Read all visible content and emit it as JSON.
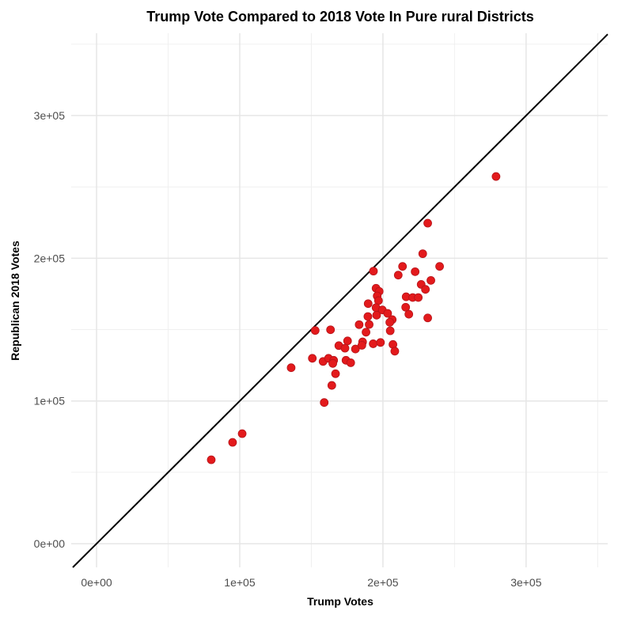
{
  "chart_data": {
    "type": "scatter",
    "title": "Trump Vote Compared to 2018 Vote In Pure rural Districts",
    "xlabel": "Trump Votes",
    "ylabel": "Republican 2018 Votes",
    "xlim": [
      -17700,
      357000
    ],
    "ylim": [
      -16600,
      357700
    ],
    "x_ticks": [
      0,
      100000,
      200000,
      300000
    ],
    "x_tick_labels": [
      "0e+00",
      "1e+05",
      "2e+05",
      "3e+05"
    ],
    "y_ticks": [
      0,
      100000,
      200000,
      300000
    ],
    "y_tick_labels": [
      "0e+00",
      "1e+05",
      "2e+05",
      "3e+05"
    ],
    "grid": true,
    "reference_line": {
      "slope": 1,
      "intercept": 0,
      "color": "#000000"
    },
    "point_color": "#e31a1c",
    "points": [
      [
        231300,
        224600
      ],
      [
        227800,
        203200
      ],
      [
        239600,
        194300
      ],
      [
        213700,
        194300
      ],
      [
        222500,
        190600
      ],
      [
        210700,
        188200
      ],
      [
        193400,
        191000
      ],
      [
        233500,
        184500
      ],
      [
        226700,
        181700
      ],
      [
        229700,
        178200
      ],
      [
        195200,
        179000
      ],
      [
        197400,
        176800
      ],
      [
        196000,
        173600
      ],
      [
        196900,
        170300
      ],
      [
        216200,
        173000
      ],
      [
        220800,
        172500
      ],
      [
        224700,
        172500
      ],
      [
        189700,
        168200
      ],
      [
        195200,
        165400
      ],
      [
        199600,
        163800
      ],
      [
        215900,
        165700
      ],
      [
        218100,
        160800
      ],
      [
        203300,
        161400
      ],
      [
        195600,
        160100
      ],
      [
        189500,
        159200
      ],
      [
        206500,
        157000
      ],
      [
        231300,
        158200
      ],
      [
        204800,
        155100
      ],
      [
        190400,
        153600
      ],
      [
        183400,
        153500
      ],
      [
        205100,
        149200
      ],
      [
        188200,
        148200
      ],
      [
        152700,
        149400
      ],
      [
        163400,
        149900
      ],
      [
        175300,
        142100
      ],
      [
        169200,
        138800
      ],
      [
        173500,
        137000
      ],
      [
        180800,
        136400
      ],
      [
        185800,
        141400
      ],
      [
        185300,
        139000
      ],
      [
        193200,
        140100
      ],
      [
        198300,
        141000
      ],
      [
        207000,
        139600
      ],
      [
        208300,
        134900
      ],
      [
        150700,
        129900
      ],
      [
        158200,
        127700
      ],
      [
        162000,
        129900
      ],
      [
        165600,
        128500
      ],
      [
        165000,
        126300
      ],
      [
        174200,
        128500
      ],
      [
        177500,
        126800
      ],
      [
        135900,
        123300
      ],
      [
        166900,
        119100
      ],
      [
        164300,
        110900
      ],
      [
        159000,
        98900
      ],
      [
        279000,
        257300
      ],
      [
        80100,
        58800
      ],
      [
        95000,
        71000
      ],
      [
        101700,
        77100
      ]
    ]
  }
}
